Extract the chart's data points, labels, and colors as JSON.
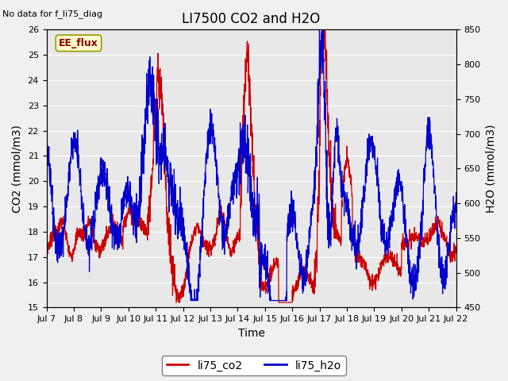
{
  "title": "LI7500 CO2 and H2O",
  "top_left_text": "No data for f_li75_diag",
  "xlabel": "Time",
  "ylabel_left": "CO2 (mmol/m3)",
  "ylabel_right": "H2O (mmol/m3)",
  "ylim_left": [
    15.0,
    26.0
  ],
  "ylim_right": [
    450,
    850
  ],
  "yticks_left": [
    15.0,
    16.0,
    17.0,
    18.0,
    19.0,
    20.0,
    21.0,
    22.0,
    23.0,
    24.0,
    25.0,
    26.0
  ],
  "yticks_right": [
    450,
    500,
    550,
    600,
    650,
    700,
    750,
    800,
    850
  ],
  "xtick_labels": [
    "Jul 7",
    "Jul 8",
    "Jul 9",
    "Jul 10",
    "Jul 11",
    "Jul 12",
    "Jul 13",
    "Jul 14",
    "Jul 15",
    "Jul 16",
    "Jul 17",
    "Jul 18",
    "Jul 19",
    "Jul 20",
    "Jul 21",
    "Jul 22"
  ],
  "color_co2": "#cc0000",
  "color_h2o": "#0000cc",
  "legend_label_co2": "li75_co2",
  "legend_label_h2o": "li75_h2o",
  "box_label": "EE_flux",
  "fig_bg_color": "#f0f0f0",
  "plot_bg_color": "#e8e8e8",
  "grid_color": "#ffffff",
  "title_fontsize": 12,
  "axis_label_fontsize": 10,
  "tick_fontsize": 8,
  "linewidth": 0.9
}
